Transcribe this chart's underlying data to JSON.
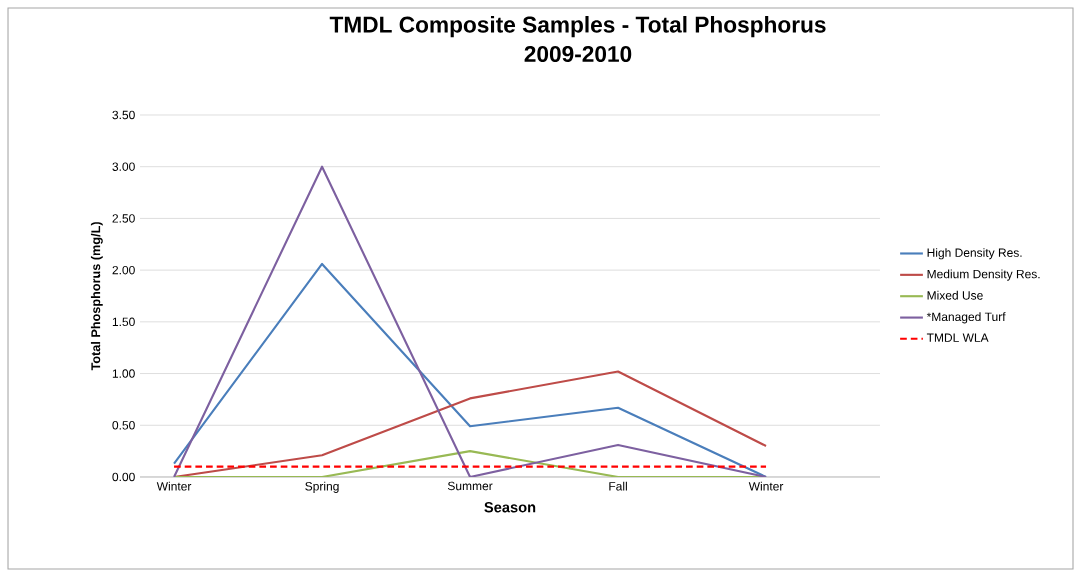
{
  "chart_data": {
    "type": "line",
    "title": "TMDL Composite Samples - Total Phosphorus",
    "subtitle": "2009-2010",
    "xlabel": "Season",
    "ylabel": "Total Phosphorus (mg/L)",
    "categories": [
      "Winter",
      "Spring",
      "Summer",
      "Fall",
      "Winter"
    ],
    "series": [
      {
        "name": "High Density Res.",
        "color": "#4a7ebb",
        "values": [
          0.13,
          2.06,
          0.49,
          0.67,
          0.0
        ]
      },
      {
        "name": "Medium Density Res.",
        "color": "#be4b48",
        "values": [
          0.0,
          0.21,
          0.76,
          1.02,
          0.3
        ]
      },
      {
        "name": "Mixed Use",
        "color": "#98b954",
        "values": [
          0.0,
          0.0,
          0.25,
          0.0,
          0.0
        ]
      },
      {
        "name": "*Managed Turf",
        "color": "#7d60a0",
        "values": [
          0.0,
          3.0,
          0.0,
          0.31,
          0.0
        ]
      },
      {
        "name": "TMDL WLA",
        "color": "#ff0000",
        "line_style": "dashed",
        "values": [
          0.1,
          0.1,
          0.1,
          0.1,
          0.1
        ]
      }
    ],
    "ylim": [
      0,
      3.5
    ],
    "yticks": [
      {
        "value": 0,
        "label": "0.00"
      },
      {
        "value": 0.5,
        "label": "0.50"
      },
      {
        "value": 1,
        "label": "1.00"
      },
      {
        "value": 1.5,
        "label": "1.50"
      },
      {
        "value": 2,
        "label": "2.00"
      },
      {
        "value": 2.5,
        "label": "2.50"
      },
      {
        "value": 3,
        "label": "3.00"
      },
      {
        "value": 3.5,
        "label": "3.50"
      }
    ],
    "grid": "y",
    "legend": "right",
    "marker": "none",
    "line_style": "solid"
  }
}
